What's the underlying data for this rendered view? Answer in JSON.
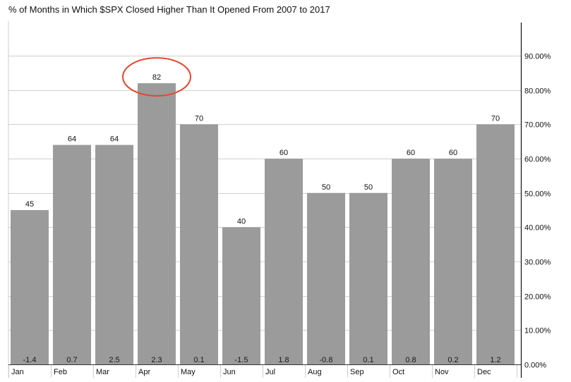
{
  "chart_data": {
    "type": "bar",
    "title": "% of Months in Which $SPX Closed Higher Than It Opened From 2007 to 2017",
    "xlabel": "",
    "ylabel": "",
    "categories": [
      "Jan",
      "Feb",
      "Mar",
      "Apr",
      "May",
      "Jun",
      "Jul",
      "Aug",
      "Sep",
      "Oct",
      "Nov",
      "Dec"
    ],
    "values": [
      45,
      64,
      64,
      82,
      70,
      40,
      60,
      50,
      50,
      60,
      60,
      70
    ],
    "value_labels": [
      "45",
      "64",
      "64",
      "82",
      "70",
      "40",
      "60",
      "50",
      "50",
      "60",
      "60",
      "70"
    ],
    "base_labels": [
      "-1.4",
      "0.7",
      "2.5",
      "2.3",
      "0.1",
      "-1.5",
      "1.8",
      "-0.8",
      "0.1",
      "0.8",
      "0.2",
      "1.2"
    ],
    "y_axis_position": "right",
    "ylim": [
      0,
      100
    ],
    "yticks": [
      0,
      10,
      20,
      30,
      40,
      50,
      60,
      70,
      80,
      90
    ],
    "ytick_labels": [
      "0.00%",
      "10.00%",
      "20.00%",
      "30.00%",
      "40.00%",
      "50.00%",
      "60.00%",
      "70.00%",
      "80.00%",
      "90.00%"
    ],
    "grid": true,
    "legend": "none",
    "highlight": {
      "category": "Apr",
      "style": "circle"
    },
    "colors": {
      "bar": "#9b9b9b",
      "grid": "#cfcfcf",
      "highlight": "#e8452c",
      "text": "#111111"
    }
  }
}
